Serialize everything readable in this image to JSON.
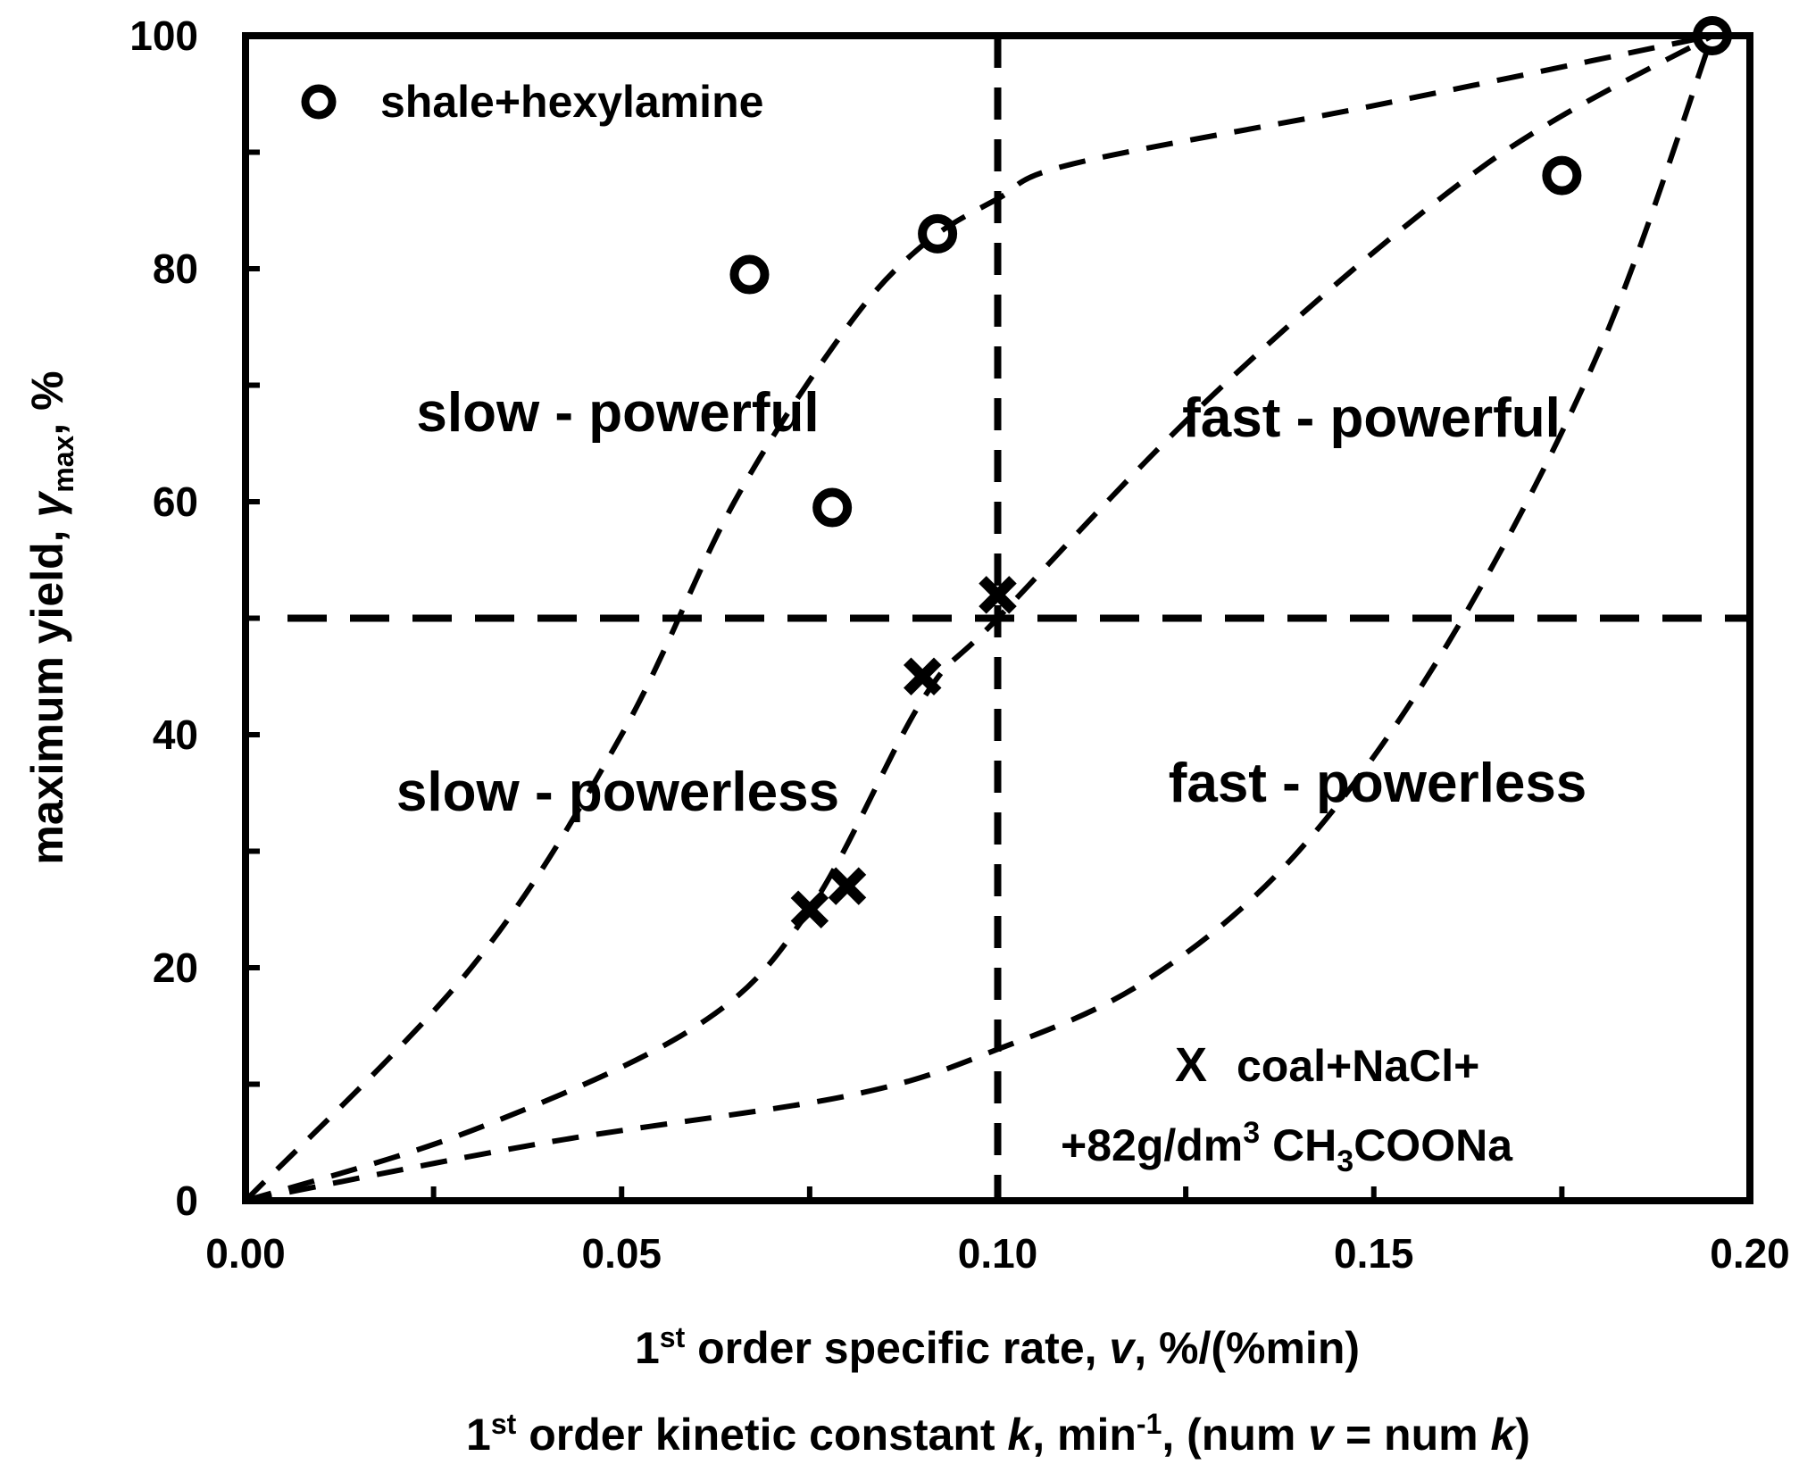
{
  "chart_data": {
    "type": "scatter",
    "xlabel_prefix": "1",
    "xlabel_sup": "st",
    "xlabel_text": " order specific rate, ",
    "xlabel_var": "v",
    "xlabel_unit": ", %/(%min)",
    "xlabel2_prefix": "1",
    "xlabel2_sup": "st",
    "xlabel2_text": " order kinetic constant ",
    "xlabel2_var": "k",
    "xlabel2_unit": ", min",
    "xlabel2_exp": "-1",
    "xlabel2_tail_a": ", (num ",
    "xlabel2_tail_v": "v",
    "xlabel2_tail_b": " = num ",
    "xlabel2_tail_k": "k",
    "xlabel2_tail_c": ")",
    "ylabel_text": "maximum yield, ",
    "ylabel_var": "γ",
    "ylabel_sub": "max",
    "ylabel_unit": ", %",
    "xlim": [
      0,
      0.2
    ],
    "ylim": [
      0,
      100
    ],
    "x_ticks": [
      "0.00",
      "0.05",
      "0.10",
      "0.15",
      "0.20"
    ],
    "y_ticks": [
      "0",
      "20",
      "40",
      "60",
      "80",
      "100"
    ],
    "regions": [
      {
        "label": "slow - powerful",
        "x": 0.05,
        "y": 67
      },
      {
        "label": "fast - powerful",
        "x": 0.15,
        "y": 67
      },
      {
        "label": "slow - powerless",
        "x": 0.05,
        "y": 35
      },
      {
        "label": "fast  - powerless",
        "x": 0.15,
        "y": 36
      }
    ],
    "divider_x": 0.1,
    "divider_y": 50,
    "series": [
      {
        "name": "shale+hexylamine",
        "marker": "circle",
        "points": [
          {
            "x": 0.067,
            "y": 79.5
          },
          {
            "x": 0.078,
            "y": 59.5
          },
          {
            "x": 0.092,
            "y": 83
          },
          {
            "x": 0.175,
            "y": 88
          },
          {
            "x": 0.195,
            "y": 100
          }
        ]
      },
      {
        "name": "coal+NaCl+",
        "name_line2_prefix": "+82g/dm",
        "name_line2_sup": "3",
        "name_line2_mid": " CH",
        "name_line2_sub": "3",
        "name_line2_end": "COONa",
        "marker": "x",
        "points": [
          {
            "x": 0.075,
            "y": 25
          },
          {
            "x": 0.08,
            "y": 27
          },
          {
            "x": 0.09,
            "y": 45
          },
          {
            "x": 0.1,
            "y": 52
          }
        ]
      }
    ],
    "legend_x_symbol": "X",
    "guide_curves": [
      {
        "name": "curve-1",
        "points": [
          [
            0,
            0
          ],
          [
            0.03,
            20
          ],
          [
            0.05,
            40
          ],
          [
            0.065,
            60
          ],
          [
            0.08,
            75
          ],
          [
            0.09,
            82
          ],
          [
            0.1,
            86
          ],
          [
            0.11,
            89
          ],
          [
            0.15,
            94
          ],
          [
            0.195,
            100
          ]
        ]
      },
      {
        "name": "curve-2",
        "points": [
          [
            0,
            0
          ],
          [
            0.03,
            6
          ],
          [
            0.06,
            15
          ],
          [
            0.075,
            25
          ],
          [
            0.09,
            43
          ],
          [
            0.1,
            50
          ],
          [
            0.13,
            70
          ],
          [
            0.165,
            89
          ],
          [
            0.195,
            100
          ]
        ]
      },
      {
        "name": "curve-3",
        "points": [
          [
            0,
            0
          ],
          [
            0.04,
            5
          ],
          [
            0.08,
            9
          ],
          [
            0.1,
            13
          ],
          [
            0.12,
            19
          ],
          [
            0.14,
            30
          ],
          [
            0.16,
            48
          ],
          [
            0.18,
            73
          ],
          [
            0.195,
            100
          ]
        ]
      }
    ]
  }
}
